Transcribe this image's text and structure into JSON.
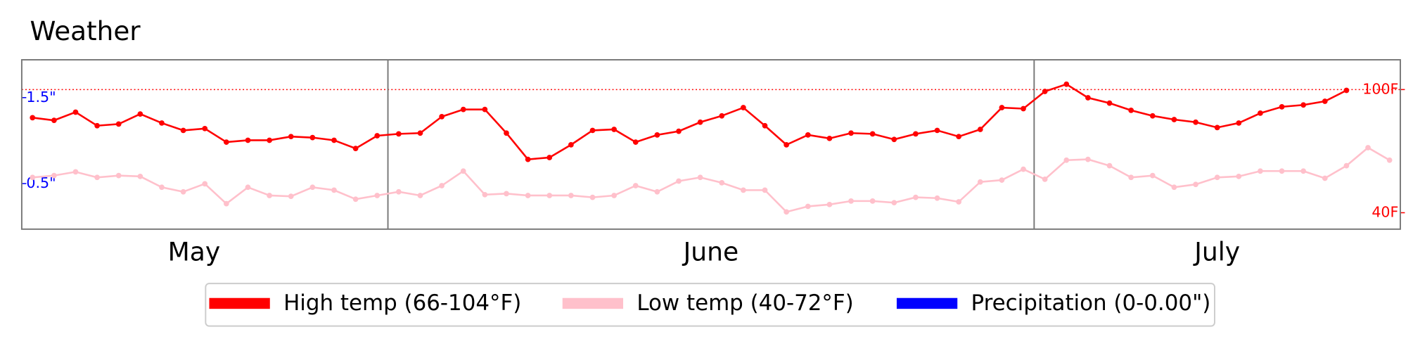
{
  "chart_data": {
    "type": "line",
    "title": "Weather",
    "x": [
      0,
      1,
      2,
      3,
      4,
      5,
      6,
      7,
      8,
      9,
      10,
      11,
      12,
      13,
      14,
      15,
      16,
      17,
      18,
      19,
      20,
      21,
      22,
      23,
      24,
      25,
      26,
      27,
      28,
      29,
      30,
      31,
      32,
      33,
      34,
      35,
      36,
      37,
      38,
      39,
      40,
      41,
      42,
      43,
      44,
      45,
      46,
      47,
      48,
      49,
      50,
      51,
      52,
      53,
      54,
      55,
      56,
      57,
      58,
      59,
      60,
      61,
      62,
      63
    ],
    "xlim": [
      -0.5,
      63.5
    ],
    "month_labels": [
      {
        "label": "May",
        "x": 7.5
      },
      {
        "label": "June",
        "x": 31.5
      },
      {
        "label": "July",
        "x": 55
      }
    ],
    "month_separators": [
      16.5,
      46.5
    ],
    "series": [
      {
        "name": "High temp (66-104°F)",
        "color": "#ff0000",
        "values": [
          86.3,
          85,
          89,
          82.4,
          83.2,
          88.1,
          83.7,
          80.1,
          81,
          74.4,
          75.3,
          75.3,
          77.1,
          76.6,
          75.3,
          71.3,
          77.5,
          78.4,
          78.8,
          86.8,
          90.3,
          90.3,
          78.8,
          66,
          66.9,
          73.1,
          80.1,
          80.6,
          74.4,
          77.9,
          79.7,
          84.1,
          87.2,
          91.2,
          82.4,
          73.1,
          77.9,
          76.2,
          78.8,
          78.4,
          75.7,
          78.4,
          80.1,
          77.1,
          80.6,
          91.2,
          90.7,
          99.1,
          102.6,
          96,
          93.4,
          89.9,
          87.2,
          85.4,
          84.1,
          81.5,
          83.7,
          88.5,
          91.6,
          92.5,
          94.3,
          99.6,
          null,
          null
        ]
      },
      {
        "name": "Low temp (40-72°F)",
        "color": "#ffc0cb",
        "values": [
          57.2,
          58.1,
          59.9,
          57.2,
          58.1,
          57.7,
          52.4,
          50.2,
          54.1,
          44.4,
          52.4,
          48.4,
          48,
          52.4,
          51,
          46.6,
          48.4,
          50.2,
          48.4,
          53.2,
          60.3,
          48.8,
          49.3,
          48.4,
          48.4,
          48.4,
          47.5,
          48.4,
          53.2,
          50.2,
          55.4,
          57.2,
          54.6,
          51,
          51,
          40.4,
          43.1,
          44,
          45.7,
          45.7,
          44.9,
          47.5,
          47.1,
          45.3,
          55,
          55.9,
          61.2,
          56.3,
          65.6,
          66,
          62.9,
          57.2,
          58.1,
          52.4,
          53.8,
          57.2,
          57.7,
          60.3,
          60.3,
          60.3,
          56.8,
          62.9,
          71.7,
          65.6
        ]
      },
      {
        "name": "Precipitation (0-0.00\")",
        "color": "#0000ff",
        "axis": "y2"
      }
    ],
    "ylim": [
      32,
      114.5
    ],
    "yticks": [
      {
        "value": 40,
        "label": "40F"
      },
      {
        "value": 100,
        "label": "100F"
      }
    ],
    "y2lim": [
      -0.03,
      1.94
    ],
    "y2ticks": [
      {
        "value": 0.5,
        "label": "0.5\""
      },
      {
        "value": 1.5,
        "label": "1.5\""
      }
    ],
    "reference_line": {
      "value": 100,
      "color": "#ff0000"
    },
    "legend": "bottom"
  }
}
